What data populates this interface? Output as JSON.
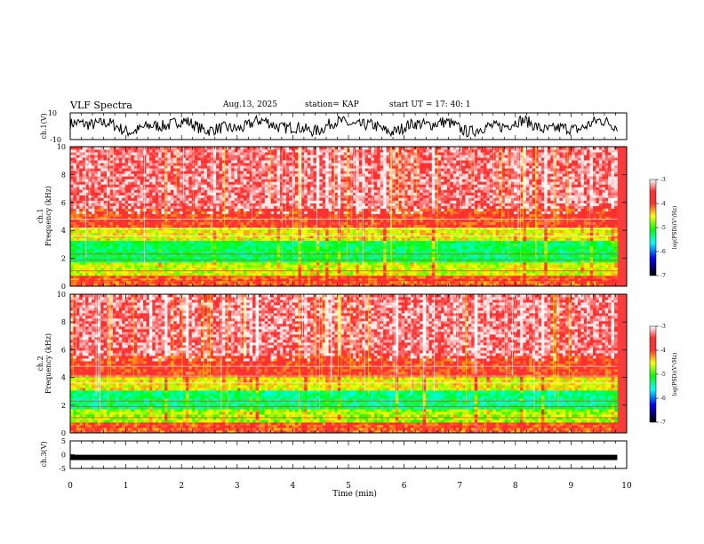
{
  "header": {
    "title": "VLF Spectra",
    "date": "Aug.13, 2025",
    "station": "station= KAP",
    "start": "start  UT =   17: 40: 1"
  },
  "colors": {
    "ramp": [
      "#ffffff",
      "#ff3030",
      "#ff3030",
      "#ffff00",
      "#00ff00",
      "#00ffff",
      "#0000ff",
      "#000000"
    ],
    "trace": "#000000",
    "axis": "#000000"
  },
  "chart_data": [
    {
      "type": "line",
      "name": "ch1-waveform",
      "ylabel": "ch.1(V)",
      "ylim": [
        -10,
        10
      ],
      "y_ticks": [
        "10",
        "-10"
      ],
      "x_range_min": [
        0,
        10
      ]
    },
    {
      "type": "heatmap",
      "name": "ch1-spectrogram",
      "ylabel_channel": "ch.1",
      "ylabel": "Frequency (kHz)",
      "ylim_khz": [
        0,
        10
      ],
      "y_ticks": [
        "0",
        "2",
        "4",
        "6",
        "8",
        "10"
      ],
      "data_end_min": 9.83,
      "colorbar": {
        "label": "log(PSD)(V²/Hz)",
        "ticks": [
          "-3",
          "-4",
          "-5",
          "-6",
          "-7"
        ],
        "range": [
          -7,
          -3
        ]
      },
      "profile": [
        {
          "from_khz": 0.0,
          "to_khz": 0.8,
          "level": -4.1
        },
        {
          "from_khz": 0.8,
          "to_khz": 1.8,
          "level": -4.6
        },
        {
          "from_khz": 1.8,
          "to_khz": 3.3,
          "level": -5.2
        },
        {
          "from_khz": 3.3,
          "to_khz": 4.2,
          "level": -4.5
        },
        {
          "from_khz": 4.2,
          "to_khz": 5.5,
          "level": -4.0
        },
        {
          "from_khz": 5.5,
          "to_khz": 10.0,
          "level": -3.4
        }
      ]
    },
    {
      "type": "heatmap",
      "name": "ch2-spectrogram",
      "ylabel_channel": "ch.2",
      "ylabel": "Frequency (kHz)",
      "ylim_khz": [
        0,
        10
      ],
      "y_ticks": [
        "0",
        "2",
        "4",
        "6",
        "8",
        "10"
      ],
      "data_end_min": 9.83,
      "colorbar": {
        "label": "log(PSD)(V²/Hz)",
        "ticks": [
          "-3",
          "-4",
          "-5",
          "-6",
          "-7"
        ],
        "range": [
          -7,
          -3
        ]
      },
      "profile": [
        {
          "from_khz": 0.0,
          "to_khz": 0.8,
          "level": -4.1
        },
        {
          "from_khz": 0.8,
          "to_khz": 1.8,
          "level": -4.7
        },
        {
          "from_khz": 1.8,
          "to_khz": 3.0,
          "level": -5.3
        },
        {
          "from_khz": 3.0,
          "to_khz": 4.0,
          "level": -4.5
        },
        {
          "from_khz": 4.0,
          "to_khz": 5.5,
          "level": -4.0
        },
        {
          "from_khz": 5.5,
          "to_khz": 10.0,
          "level": -3.4
        }
      ]
    },
    {
      "type": "line",
      "name": "ch3-waveform",
      "ylabel": "ch.3(V)",
      "ylim": [
        -5,
        5
      ],
      "y_ticks": [
        "5",
        "0",
        "-5"
      ],
      "level_v": -1
    }
  ],
  "xaxis": {
    "label": "Time (min)",
    "ticks": [
      "0",
      "1",
      "2",
      "3",
      "4",
      "5",
      "6",
      "7",
      "8",
      "9",
      "10"
    ],
    "range": [
      0,
      10
    ]
  }
}
